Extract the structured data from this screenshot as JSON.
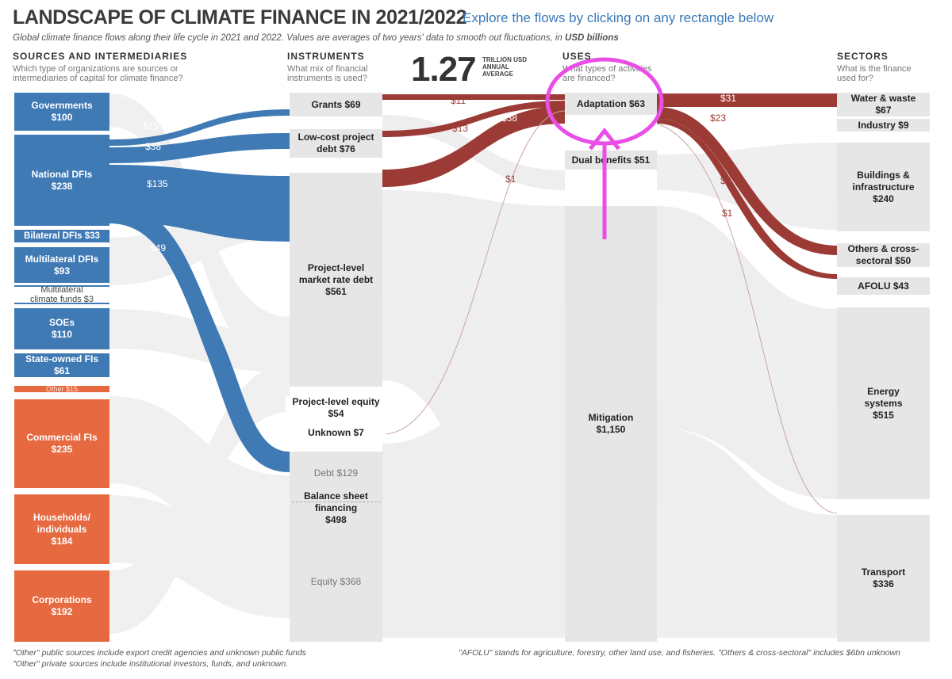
{
  "header": {
    "title": "LANDSCAPE OF CLIMATE FINANCE IN 2021/2022",
    "explore": "Explore the flows by clicking on any rectangle below",
    "subtitle_main": "Global climate finance flows along their life cycle in 2021 and 2022. Values are averages of two years' data to smooth out fluctuations, in",
    "subtitle_unit": "USD billions"
  },
  "columns": {
    "sources": {
      "title": "SOURCES AND INTERMEDIARIES",
      "question": "Which type of organizations are sources or intermediaries of capital for climate finance?"
    },
    "instruments": {
      "title": "INSTRUMENTS",
      "question": "What mix of financial instruments is used?"
    },
    "uses": {
      "title": "USES",
      "question": "What types of activities are financed?"
    },
    "sectors": {
      "title": "SECTORS",
      "question": "What is the finance used for?"
    }
  },
  "total": {
    "value": "1.27",
    "line1": "TRILLION USD",
    "line2": "ANNUAL",
    "line3": "AVERAGE"
  },
  "sources": [
    {
      "label": "Governments",
      "value": "$100"
    },
    {
      "label": "National DFIs",
      "value": "$238"
    },
    {
      "label": "Bilateral DFIs $33"
    },
    {
      "label": "Multilateral DFIs",
      "value": "$93"
    },
    {
      "label": "Multilateral",
      "value": "climate funds $3"
    },
    {
      "label": "SOEs",
      "value": "$110"
    },
    {
      "label": "State-owned FIs",
      "value": "$61"
    },
    {
      "label": "Other $15"
    },
    {
      "label": "Commercial FIs",
      "value": "$235"
    },
    {
      "label": "Households/",
      "label2": "individuals",
      "value": "$184"
    },
    {
      "label": "Corporations",
      "value": "$192"
    }
  ],
  "instruments": [
    {
      "label": "Grants $69"
    },
    {
      "label": "Low-cost project",
      "value": "debt $76"
    },
    {
      "label": "Project-level",
      "label2": "market rate debt",
      "value": "$561"
    },
    {
      "label": "Project-level equity",
      "value": "$54"
    },
    {
      "label": "Unknown $7"
    },
    {
      "label": "Debt $129"
    },
    {
      "label": "Balance sheet",
      "label2": "financing",
      "value": "$498"
    },
    {
      "label": "Equity $368"
    }
  ],
  "uses": [
    {
      "label": "Adaptation $63"
    },
    {
      "label": "Dual benefits $51"
    },
    {
      "label": "Mitigation",
      "value": "$1,150"
    }
  ],
  "sectors": [
    {
      "label": "Water & waste",
      "value": "$67"
    },
    {
      "label": "Industry $9"
    },
    {
      "label": "Buildings &",
      "label2": "infrastructure",
      "value": "$240"
    },
    {
      "label": "Others & cross-",
      "value": "sectoral $50"
    },
    {
      "label": "AFOLU $43"
    },
    {
      "label": "Energy",
      "label2": "systems",
      "value": "$515"
    },
    {
      "label": "Transport",
      "value": "$336"
    }
  ],
  "flow_labels": {
    "nd_grants": "$15",
    "nd_lowcost": "$38",
    "nd_market": "$135",
    "nd_balance": "$49",
    "grants_adapt": "$11",
    "lowcost_adapt": "$13",
    "market_adapt": "$38",
    "equity_adapt": "$1",
    "adapt_water": "$31",
    "adapt_others": "$23",
    "adapt_afolu": "$7",
    "adapt_energy": "$1"
  },
  "footnotes": {
    "left1": "\"Other\" public sources include export credit agencies and unknown public funds",
    "left2": "\"Other\" private sources include institutional investors, funds, and unknown.",
    "right": "\"AFOLU\" stands for agriculture, forestry, other land use, and fisheries. \"Others & cross-sectoral\" includes $6bn unknown"
  },
  "colors": {
    "public": "#3f7ab5",
    "private": "#e7693f",
    "adaptation_flow": "#9c3b35",
    "highlight": "#e94ee6",
    "node_grey": "#e6e6e6"
  }
}
